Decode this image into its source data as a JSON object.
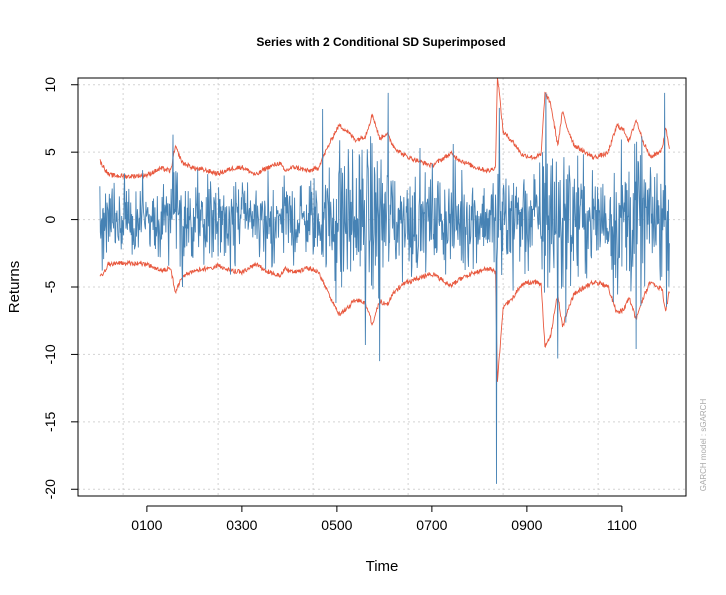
{
  "chart_data": {
    "type": "line",
    "title": "Series with 2 Conditional SD Superimposed",
    "xlabel": "Time",
    "ylabel": "Returns",
    "side_note": "GARCH model : sGARCH",
    "xlim": [
      -45,
      1235
    ],
    "ylim": [
      -20.5,
      10.5
    ],
    "x_ticks": [
      {
        "value": 100,
        "label": "0100"
      },
      {
        "value": 300,
        "label": "0300"
      },
      {
        "value": 500,
        "label": "0500"
      },
      {
        "value": 700,
        "label": "0700"
      },
      {
        "value": 900,
        "label": "0900"
      },
      {
        "value": 1100,
        "label": "1100"
      }
    ],
    "y_ticks": [
      10,
      5,
      0,
      -5,
      -10,
      -15,
      -20
    ],
    "grid": true,
    "n_points": 1200,
    "series": [
      {
        "name": "Returns",
        "color": "#4682B4",
        "description": "approximate reconstruction of noisy return series",
        "extremes": [
          {
            "x": 155,
            "y": 6.3
          },
          {
            "x": 175,
            "y": -5.0
          },
          {
            "x": 470,
            "y": 8.2
          },
          {
            "x": 560,
            "y": -9.3
          },
          {
            "x": 590,
            "y": -10.5
          },
          {
            "x": 608,
            "y": 9.4
          },
          {
            "x": 836,
            "y": 10.5
          },
          {
            "x": 836,
            "y": -19.6
          },
          {
            "x": 940,
            "y": 9.4
          },
          {
            "x": 965,
            "y": -10.3
          },
          {
            "x": 1130,
            "y": -9.6
          },
          {
            "x": 1190,
            "y": 9.4
          }
        ]
      },
      {
        "name": "+2 Conditional SD",
        "color": "#E8583E",
        "anchors": [
          [
            0,
            4.4
          ],
          [
            20,
            3.3
          ],
          [
            60,
            3.2
          ],
          [
            100,
            3.3
          ],
          [
            130,
            3.8
          ],
          [
            150,
            3.6
          ],
          [
            160,
            5.4
          ],
          [
            175,
            4.2
          ],
          [
            200,
            3.8
          ],
          [
            230,
            3.6
          ],
          [
            250,
            3.4
          ],
          [
            280,
            3.8
          ],
          [
            300,
            3.9
          ],
          [
            330,
            3.3
          ],
          [
            350,
            3.8
          ],
          [
            380,
            4.2
          ],
          [
            390,
            3.6
          ],
          [
            410,
            3.9
          ],
          [
            440,
            3.6
          ],
          [
            460,
            3.8
          ],
          [
            480,
            5.3
          ],
          [
            495,
            6.4
          ],
          [
            505,
            7.0
          ],
          [
            520,
            6.6
          ],
          [
            540,
            5.9
          ],
          [
            560,
            6.2
          ],
          [
            575,
            7.8
          ],
          [
            590,
            6.0
          ],
          [
            605,
            6.4
          ],
          [
            620,
            5.4
          ],
          [
            640,
            4.8
          ],
          [
            660,
            4.5
          ],
          [
            700,
            4.0
          ],
          [
            740,
            4.9
          ],
          [
            760,
            4.4
          ],
          [
            790,
            3.9
          ],
          [
            820,
            3.6
          ],
          [
            834,
            3.9
          ],
          [
            838,
            10.8
          ],
          [
            850,
            6.5
          ],
          [
            870,
            5.8
          ],
          [
            890,
            4.8
          ],
          [
            915,
            4.6
          ],
          [
            930,
            4.8
          ],
          [
            938,
            9.4
          ],
          [
            950,
            8.6
          ],
          [
            965,
            5.5
          ],
          [
            975,
            8.0
          ],
          [
            985,
            6.8
          ],
          [
            1000,
            5.5
          ],
          [
            1040,
            4.6
          ],
          [
            1070,
            4.9
          ],
          [
            1090,
            7.0
          ],
          [
            1105,
            6.6
          ],
          [
            1115,
            5.8
          ],
          [
            1130,
            7.4
          ],
          [
            1145,
            5.8
          ],
          [
            1160,
            4.6
          ],
          [
            1185,
            5.2
          ],
          [
            1192,
            6.9
          ],
          [
            1200,
            5.3
          ]
        ]
      },
      {
        "name": "-2 Conditional SD",
        "color": "#E8583E",
        "anchors": [
          [
            0,
            -4.4
          ],
          [
            20,
            -3.3
          ],
          [
            60,
            -3.2
          ],
          [
            100,
            -3.3
          ],
          [
            130,
            -3.8
          ],
          [
            150,
            -3.6
          ],
          [
            160,
            -5.4
          ],
          [
            175,
            -4.2
          ],
          [
            200,
            -3.8
          ],
          [
            230,
            -3.6
          ],
          [
            250,
            -3.4
          ],
          [
            280,
            -3.8
          ],
          [
            300,
            -3.9
          ],
          [
            330,
            -3.3
          ],
          [
            350,
            -3.8
          ],
          [
            380,
            -4.2
          ],
          [
            390,
            -3.6
          ],
          [
            410,
            -3.9
          ],
          [
            440,
            -3.6
          ],
          [
            460,
            -3.8
          ],
          [
            480,
            -5.3
          ],
          [
            495,
            -6.4
          ],
          [
            505,
            -7.0
          ],
          [
            520,
            -6.6
          ],
          [
            540,
            -5.9
          ],
          [
            560,
            -6.2
          ],
          [
            575,
            -7.8
          ],
          [
            590,
            -6.0
          ],
          [
            605,
            -6.4
          ],
          [
            620,
            -5.4
          ],
          [
            640,
            -4.8
          ],
          [
            660,
            -4.5
          ],
          [
            700,
            -4.0
          ],
          [
            740,
            -4.9
          ],
          [
            760,
            -4.4
          ],
          [
            790,
            -3.9
          ],
          [
            820,
            -3.6
          ],
          [
            834,
            -3.9
          ],
          [
            838,
            -12.0
          ],
          [
            850,
            -6.5
          ],
          [
            870,
            -5.8
          ],
          [
            890,
            -4.8
          ],
          [
            915,
            -4.6
          ],
          [
            930,
            -4.8
          ],
          [
            938,
            -9.4
          ],
          [
            950,
            -8.6
          ],
          [
            965,
            -5.5
          ],
          [
            975,
            -8.0
          ],
          [
            985,
            -6.8
          ],
          [
            1000,
            -5.5
          ],
          [
            1040,
            -4.6
          ],
          [
            1070,
            -4.9
          ],
          [
            1090,
            -7.0
          ],
          [
            1105,
            -6.6
          ],
          [
            1115,
            -5.8
          ],
          [
            1130,
            -7.4
          ],
          [
            1145,
            -5.8
          ],
          [
            1160,
            -4.6
          ],
          [
            1185,
            -5.2
          ],
          [
            1192,
            -6.9
          ],
          [
            1200,
            -5.3
          ]
        ]
      }
    ]
  }
}
